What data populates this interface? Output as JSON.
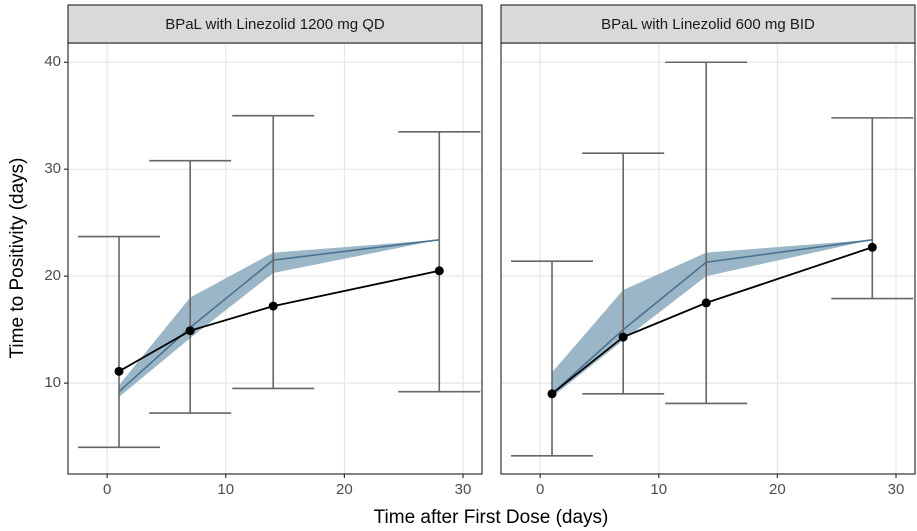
{
  "chart_data": {
    "type": "line",
    "x_label": "Time after First Dose (days)",
    "y_label": "Time to Positivity (days)",
    "xlim": [
      -3.3,
      31.6
    ],
    "xticks": [
      0,
      10,
      20,
      30
    ],
    "ylim": [
      1.5,
      41.8
    ],
    "yticks": [
      10,
      20,
      30,
      40
    ],
    "grid": true,
    "panels": [
      {
        "title": "BPaL with Linezolid 1200 mg QD",
        "x": [
          1,
          7,
          14,
          28
        ],
        "observed": {
          "color": "#000000",
          "values": [
            11.1,
            14.9,
            17.2,
            20.5
          ],
          "lower": [
            4.0,
            7.2,
            9.5,
            9.2
          ],
          "upper": [
            23.7,
            30.8,
            35.0,
            33.5
          ]
        },
        "predicted": {
          "color": "#4a7391",
          "band_color": "#8aa9bd",
          "values": [
            9.2,
            15.2,
            21.5,
            23.4
          ],
          "lower": [
            8.7,
            14.2,
            20.3,
            23.4
          ],
          "upper": [
            9.8,
            18.0,
            22.2,
            23.4
          ]
        }
      },
      {
        "title": "BPaL with Linezolid 600 mg BID",
        "x": [
          1,
          7,
          14,
          28
        ],
        "observed": {
          "color": "#000000",
          "values": [
            9.0,
            14.3,
            17.5,
            22.7
          ],
          "lower": [
            3.2,
            9.0,
            8.1,
            17.9
          ],
          "upper": [
            21.4,
            31.5,
            40.0,
            34.8
          ]
        },
        "predicted": {
          "color": "#4a7391",
          "band_color": "#8aa9bd",
          "values": [
            9.0,
            15.0,
            21.3,
            23.4
          ],
          "lower": [
            8.7,
            14.0,
            20.0,
            23.4
          ],
          "upper": [
            11.0,
            18.7,
            22.2,
            23.4
          ]
        }
      }
    ]
  }
}
